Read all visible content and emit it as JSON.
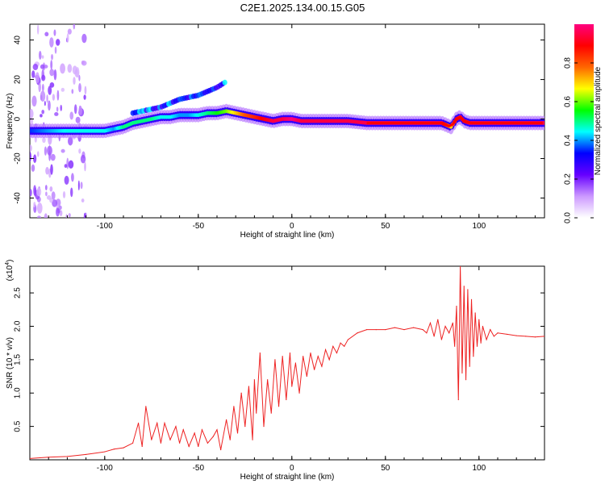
{
  "title": "C2E1.2025.134.00.15.G05",
  "chart_data": [
    {
      "type": "heatmap",
      "xlabel": "Height of straight line (km)",
      "ylabel": "Frequency (Hz)",
      "xlim": [
        -140,
        135
      ],
      "ylim": [
        -50,
        48
      ],
      "x_ticks": [
        -100,
        -50,
        0,
        50,
        100
      ],
      "y_ticks": [
        -40,
        -20,
        0,
        20,
        40
      ],
      "x_tick_labels": [
        "-100",
        "-50",
        "0",
        "50",
        "100"
      ],
      "y_tick_labels": [
        "-40",
        "-20",
        "0",
        "20",
        "40"
      ],
      "colorbar": {
        "label": "Normalized spectral amplitude",
        "range": [
          0,
          1
        ],
        "ticks": [
          0.0,
          0.2,
          0.4,
          0.6,
          0.8
        ],
        "tick_labels": [
          "0.0",
          "0.2",
          "0.4",
          "0.6",
          "0.8"
        ],
        "colormap": [
          "#ffffff",
          "#cc99ff",
          "#6600ff",
          "#0000ff",
          "#00ffff",
          "#00ff00",
          "#ffff00",
          "#ff6600",
          "#ff0000",
          "#ff0080"
        ]
      },
      "ridge": {
        "x": [
          -140,
          -130,
          -120,
          -110,
          -100,
          -95,
          -90,
          -85,
          -80,
          -75,
          -70,
          -65,
          -60,
          -55,
          -50,
          -45,
          -40,
          -35,
          -30,
          -25,
          -20,
          -15,
          -10,
          -5,
          0,
          5,
          10,
          20,
          30,
          40,
          50,
          60,
          70,
          80,
          85,
          88,
          90,
          92,
          95,
          100,
          110,
          120,
          135
        ],
        "freq": [
          -6,
          -6,
          -6,
          -6,
          -6,
          -5,
          -4,
          -2,
          -1,
          0,
          1,
          1,
          2,
          2,
          2,
          3,
          3,
          4,
          3,
          2,
          1,
          0,
          -1,
          0,
          0,
          -1,
          -1,
          -1,
          -1,
          -2,
          -2,
          -2,
          -2,
          -2,
          -4,
          0,
          1,
          -1,
          -2,
          -2,
          -2,
          -2,
          -2
        ],
        "amplitude": [
          0.35,
          0.4,
          0.45,
          0.45,
          0.45,
          0.4,
          0.5,
          0.5,
          0.5,
          0.5,
          0.45,
          0.45,
          0.4,
          0.4,
          0.45,
          0.5,
          0.55,
          0.6,
          0.7,
          0.8,
          0.85,
          0.9,
          0.95,
          0.95,
          1.0,
          0.95,
          0.95,
          0.95,
          0.95,
          0.95,
          0.95,
          0.95,
          0.95,
          0.95,
          0.7,
          0.9,
          0.95,
          0.9,
          0.95,
          0.95,
          0.95,
          0.95,
          0.95
        ]
      },
      "upper_branch": {
        "x": [
          -85,
          -80,
          -75,
          -70,
          -65,
          -60,
          -55,
          -50,
          -45,
          -40,
          -35
        ],
        "freq": [
          3,
          4,
          5,
          6,
          8,
          10,
          11,
          12,
          14,
          16,
          19
        ]
      }
    },
    {
      "type": "line",
      "xlabel": "Height of straight line (km)",
      "ylabel": "SNR (10 * v/v)",
      "y_multiplier": "(x10",
      "y_multiplier_exp": "4",
      "y_multiplier_close": ")",
      "xlim": [
        -140,
        135
      ],
      "ylim": [
        0,
        2.9
      ],
      "x_ticks": [
        -100,
        -50,
        0,
        50,
        100
      ],
      "y_ticks": [
        0.5,
        1.0,
        1.5,
        2.0,
        2.5
      ],
      "x_tick_labels": [
        "-100",
        "-50",
        "0",
        "50",
        "100"
      ],
      "y_tick_labels": [
        "0.5",
        "1.0",
        "1.5",
        "2.0",
        "2.5"
      ],
      "series": [
        {
          "color": "#ee2222",
          "x": [
            -140,
            -130,
            -120,
            -110,
            -100,
            -95,
            -90,
            -85,
            -82,
            -80,
            -78,
            -75,
            -72,
            -70,
            -68,
            -65,
            -62,
            -60,
            -58,
            -55,
            -52,
            -50,
            -48,
            -45,
            -42,
            -40,
            -38,
            -35,
            -33,
            -31,
            -29,
            -27,
            -25,
            -23,
            -21,
            -20,
            -19,
            -17,
            -15,
            -13,
            -11,
            -9,
            -7,
            -5,
            -3,
            -1,
            0,
            2,
            4,
            6,
            8,
            10,
            12,
            14,
            16,
            18,
            20,
            22,
            24,
            26,
            28,
            30,
            35,
            40,
            45,
            50,
            55,
            60,
            65,
            70,
            72,
            74,
            76,
            78,
            80,
            82,
            84,
            86,
            87,
            88,
            89,
            90,
            91,
            92,
            93,
            94,
            95,
            96,
            97,
            98,
            99,
            100,
            101,
            102,
            104,
            106,
            108,
            110,
            115,
            120,
            125,
            130,
            135
          ],
          "y": [
            0.02,
            0.04,
            0.05,
            0.08,
            0.12,
            0.16,
            0.18,
            0.25,
            0.55,
            0.2,
            0.8,
            0.3,
            0.55,
            0.25,
            0.55,
            0.3,
            0.5,
            0.25,
            0.45,
            0.2,
            0.4,
            0.2,
            0.45,
            0.25,
            0.35,
            0.45,
            0.15,
            0.6,
            0.3,
            0.8,
            0.4,
            1.0,
            0.5,
            1.1,
            0.3,
            1.2,
            0.7,
            1.6,
            0.5,
            1.2,
            0.7,
            1.5,
            0.8,
            1.55,
            0.9,
            1.6,
            1.1,
            1.45,
            1.0,
            1.55,
            1.25,
            1.6,
            1.35,
            1.55,
            1.4,
            1.65,
            1.5,
            1.7,
            1.6,
            1.75,
            1.7,
            1.8,
            1.9,
            1.95,
            1.95,
            1.95,
            1.98,
            1.95,
            1.98,
            1.95,
            1.9,
            2.05,
            1.85,
            2.1,
            1.8,
            2.0,
            1.9,
            2.05,
            1.7,
            2.3,
            0.9,
            2.9,
            1.3,
            2.6,
            1.2,
            2.55,
            1.4,
            2.4,
            1.55,
            2.2,
            1.7,
            2.1,
            1.75,
            2.0,
            1.8,
            1.95,
            1.85,
            1.9,
            1.88,
            1.86,
            1.85,
            1.84,
            1.85
          ]
        }
      ]
    }
  ]
}
